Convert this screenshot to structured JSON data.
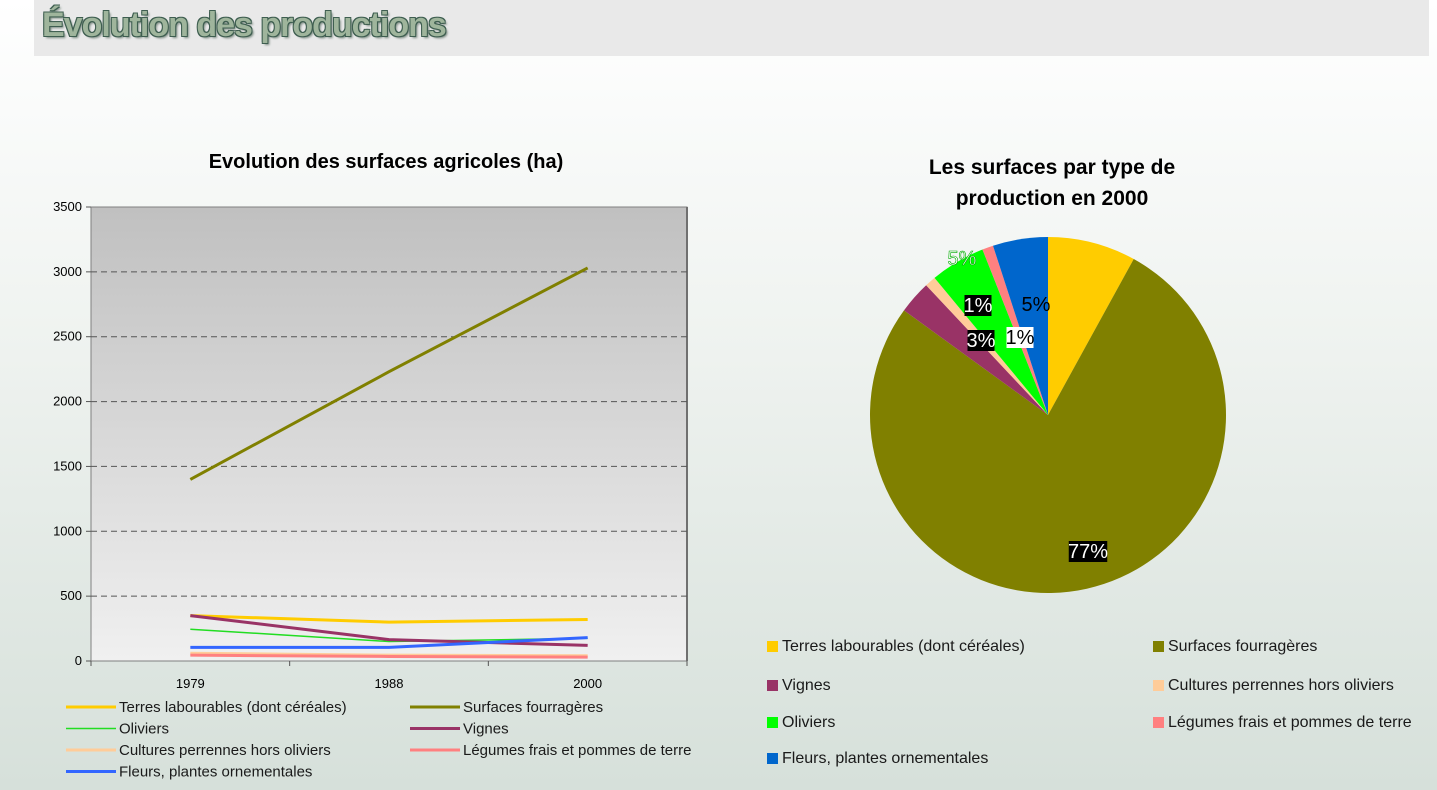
{
  "header": {
    "title": "Évolution des productions"
  },
  "chart_data": [
    {
      "type": "line",
      "title": "Evolution des surfaces agricoles (ha)",
      "xlabel": "",
      "ylabel": "",
      "x": [
        "1979",
        "1988",
        "2000"
      ],
      "ylim": [
        0,
        3500
      ],
      "yticks": [
        0,
        500,
        1000,
        1500,
        2000,
        2500,
        3000,
        3500
      ],
      "grid": true,
      "legend_position": "bottom",
      "series": [
        {
          "name": "Terres labourables (dont céréales)",
          "color": "#ffcc00",
          "width": 3,
          "values": [
            350,
            300,
            320
          ]
        },
        {
          "name": "Surfaces fourragères",
          "color": "#808000",
          "width": 3,
          "values": [
            1400,
            2230,
            3030
          ]
        },
        {
          "name": "Oliviers",
          "color": "#22dd22",
          "width": 1.5,
          "values": [
            245,
            150,
            175
          ]
        },
        {
          "name": "Vignes",
          "color": "#993366",
          "width": 3,
          "values": [
            350,
            165,
            120
          ]
        },
        {
          "name": "Cultures perrennes hors oliviers",
          "color": "#ffcc99",
          "width": 3,
          "values": [
            60,
            45,
            40
          ]
        },
        {
          "name": "Légumes frais et pommes de terre",
          "color": "#ff8080",
          "width": 3,
          "values": [
            45,
            35,
            30
          ]
        },
        {
          "name": "Fleurs, plantes ornementales",
          "color": "#3366ff",
          "width": 3,
          "values": [
            105,
            105,
            180
          ]
        }
      ]
    },
    {
      "type": "pie",
      "title": "Les surfaces par type de production en 2000",
      "legend_position": "bottom",
      "slices": [
        {
          "name": "Terres labourables (dont céréales)",
          "color": "#ffcc00",
          "value": 8,
          "label": ""
        },
        {
          "name": "Surfaces fourragères",
          "color": "#808000",
          "value": 77,
          "label": "77%"
        },
        {
          "name": "Vignes",
          "color": "#993366",
          "value": 3,
          "label": "3%"
        },
        {
          "name": "Cultures perrennes hors oliviers",
          "color": "#ffcc99",
          "value": 1,
          "label": "1%"
        },
        {
          "name": "Oliviers",
          "color": "#00ff00",
          "value": 5,
          "label": "5%"
        },
        {
          "name": "Légumes frais et pommes de terre",
          "color": "#ff8080",
          "value": 1,
          "label": "1%"
        },
        {
          "name": "Fleurs, plantes ornementales",
          "color": "#0066cc",
          "value": 5,
          "label": "5%"
        }
      ]
    }
  ]
}
